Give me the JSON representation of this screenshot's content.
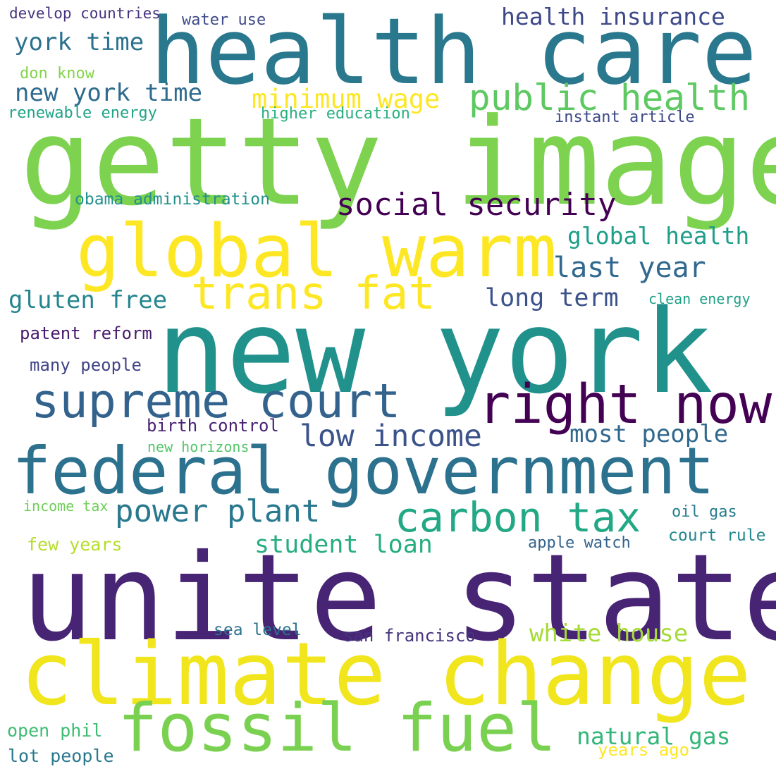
{
  "words": [
    {
      "text": "getty image",
      "color": "#7dd250"
    },
    {
      "text": "health care",
      "color": "#2a788e"
    },
    {
      "text": "new york",
      "color": "#21918c"
    },
    {
      "text": "unite state",
      "color": "#482475"
    },
    {
      "text": "climate change",
      "color": "#f1e51d"
    },
    {
      "text": "global warm",
      "color": "#fde725"
    },
    {
      "text": "federal government",
      "color": "#2c728e"
    },
    {
      "text": "fossil fuel",
      "color": "#7ad151"
    },
    {
      "text": "right now",
      "color": "#440154"
    },
    {
      "text": "supreme court",
      "color": "#33638d"
    },
    {
      "text": "trans fat",
      "color": "#fde725"
    },
    {
      "text": "public health",
      "color": "#5ec962"
    },
    {
      "text": "carbon tax",
      "color": "#22a884"
    },
    {
      "text": "social security",
      "color": "#440154"
    },
    {
      "text": "low income",
      "color": "#3b528b"
    },
    {
      "text": "power plant",
      "color": "#2a788e"
    },
    {
      "text": "last year",
      "color": "#31688e"
    },
    {
      "text": "minimum wage",
      "color": "#fde725"
    },
    {
      "text": "student loan",
      "color": "#27ad81"
    },
    {
      "text": "health insurance",
      "color": "#3e4989"
    },
    {
      "text": "york time",
      "color": "#2c728e"
    },
    {
      "text": "new york time",
      "color": "#2f6b8e"
    },
    {
      "text": "global health",
      "color": "#1f9e89"
    },
    {
      "text": "gluten free",
      "color": "#25858e"
    },
    {
      "text": "long term",
      "color": "#3b528b"
    },
    {
      "text": "most people",
      "color": "#31688e"
    },
    {
      "text": "white house",
      "color": "#a5db36"
    },
    {
      "text": "natural gas",
      "color": "#35b779"
    },
    {
      "text": "patent reform",
      "color": "#481a6c"
    },
    {
      "text": "many people",
      "color": "#414487"
    },
    {
      "text": "birth control",
      "color": "#482173"
    },
    {
      "text": "new horizons",
      "color": "#52c569"
    },
    {
      "text": "income tax",
      "color": "#6ece58"
    },
    {
      "text": "few years",
      "color": "#b5de2b"
    },
    {
      "text": "open phil",
      "color": "#3fbc73"
    },
    {
      "text": "lot people",
      "color": "#2a788e"
    },
    {
      "text": "sea level",
      "color": "#2c728e"
    },
    {
      "text": "san francisco",
      "color": "#46337e"
    },
    {
      "text": "apple watch",
      "color": "#33638d"
    },
    {
      "text": "oil gas",
      "color": "#287d8e"
    },
    {
      "text": "court rule",
      "color": "#24878e"
    },
    {
      "text": "years ago",
      "color": "#fde725"
    },
    {
      "text": "obama administration",
      "color": "#21918c"
    },
    {
      "text": "develop countries",
      "color": "#46327e"
    },
    {
      "text": "water use",
      "color": "#3e4989"
    },
    {
      "text": "don know",
      "color": "#84d44b"
    },
    {
      "text": "renewable energy",
      "color": "#20a386"
    },
    {
      "text": "higher education",
      "color": "#29af7f"
    },
    {
      "text": "instant article",
      "color": "#3e4989"
    },
    {
      "text": "clean energy",
      "color": "#1fa188"
    }
  ]
}
